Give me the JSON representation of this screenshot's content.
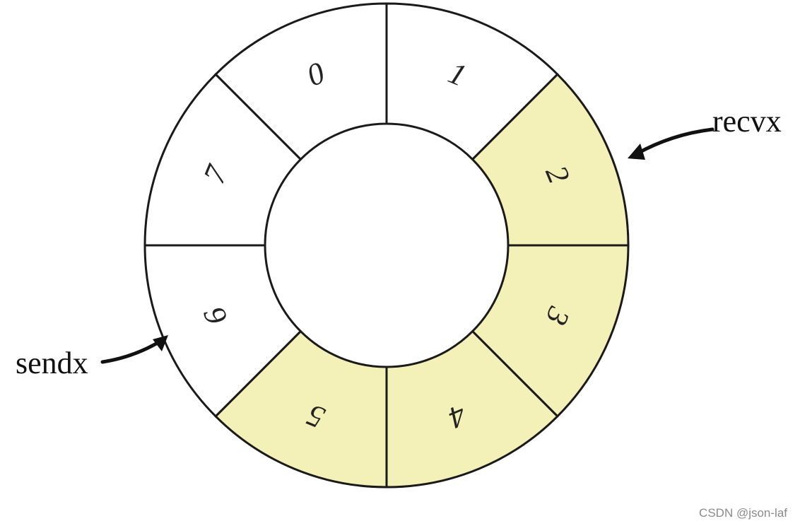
{
  "diagram": {
    "segments": [
      {
        "label": "0",
        "filled": false
      },
      {
        "label": "1",
        "filled": false
      },
      {
        "label": "2",
        "filled": true
      },
      {
        "label": "3",
        "filled": true
      },
      {
        "label": "4",
        "filled": true
      },
      {
        "label": "5",
        "filled": true
      },
      {
        "label": "6",
        "filled": false
      },
      {
        "label": "7",
        "filled": false
      }
    ],
    "pointers": {
      "recv": {
        "label": "recvx",
        "slot": "2"
      },
      "send": {
        "label": "sendx",
        "slot": "6"
      }
    },
    "colors": {
      "filled": "#f3f1b8",
      "empty": "#ffffff",
      "stroke": "#1a1a1a"
    }
  },
  "watermark": "CSDN @json-laf"
}
